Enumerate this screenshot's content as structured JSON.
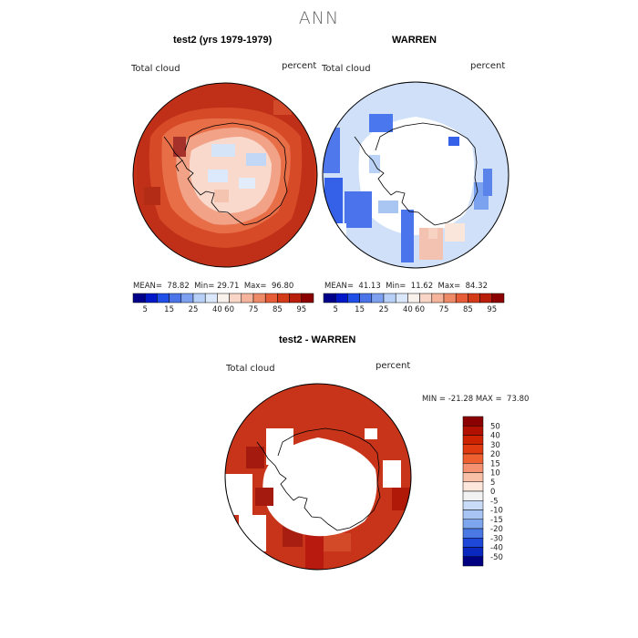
{
  "title": "ANN",
  "panels": [
    {
      "title": "test2 (yrs 1979-1979)",
      "variable": "Total cloud",
      "units": "percent",
      "stats": {
        "mean_label": "MEAN=",
        "mean": "78.82",
        "min_label": "Min=",
        "min": "29.71",
        "max_label": "Max=",
        "max": "96.80"
      }
    },
    {
      "title": "WARREN",
      "variable": "Total cloud",
      "units": "percent",
      "stats": {
        "mean_label": "MEAN=",
        "mean": "41.13",
        "min_label": "Min=",
        "min": "11.62",
        "max_label": "Max=",
        "max": "84.32"
      }
    },
    {
      "title": "test2 - WARREN",
      "variable": "Total cloud",
      "units": "percent",
      "stats": {
        "min_label": "MIN =",
        "min": "-21.28",
        "max_label": "MAX =",
        "max": "73.80"
      }
    }
  ],
  "chart_data": [
    {
      "type": "heatmap",
      "title": "test2 (yrs 1979-1979)",
      "projection": "south-polar-stereographic",
      "colorbar": {
        "orientation": "horizontal",
        "tick_labels": [
          "5",
          "15",
          "25",
          "40",
          "60",
          "75",
          "85",
          "95"
        ],
        "colors": [
          "#00008b",
          "#0018c8",
          "#1f4fe6",
          "#4a74e8",
          "#7ea0f0",
          "#b7d0f7",
          "#dbe8fb",
          "#f8f1ec",
          "#f9d5c7",
          "#f6b49c",
          "#ef8a68",
          "#e55c37",
          "#d23a18",
          "#b81e0a",
          "#8b0000"
        ]
      }
    },
    {
      "type": "heatmap",
      "title": "WARREN",
      "projection": "south-polar-stereographic",
      "colorbar": {
        "orientation": "horizontal",
        "tick_labels": [
          "5",
          "15",
          "25",
          "40",
          "60",
          "75",
          "85",
          "95"
        ]
      }
    },
    {
      "type": "heatmap",
      "title": "test2 - WARREN",
      "projection": "south-polar-stereographic",
      "colorbar": {
        "orientation": "vertical",
        "tick_labels": [
          "50",
          "40",
          "30",
          "20",
          "15",
          "10",
          "5",
          "0",
          "-5",
          "-10",
          "-15",
          "-20",
          "-30",
          "-40",
          "-50"
        ],
        "colors": [
          "#8b0000",
          "#b21000",
          "#cc2200",
          "#e03a10",
          "#ee6030",
          "#f59070",
          "#f9c0a8",
          "#fde6dc",
          "#f2f2f2",
          "#c8dcf8",
          "#a8c4f4",
          "#7ea6ee",
          "#4a78e4",
          "#1e48d8",
          "#0a28c0",
          "#000080"
        ]
      }
    }
  ]
}
